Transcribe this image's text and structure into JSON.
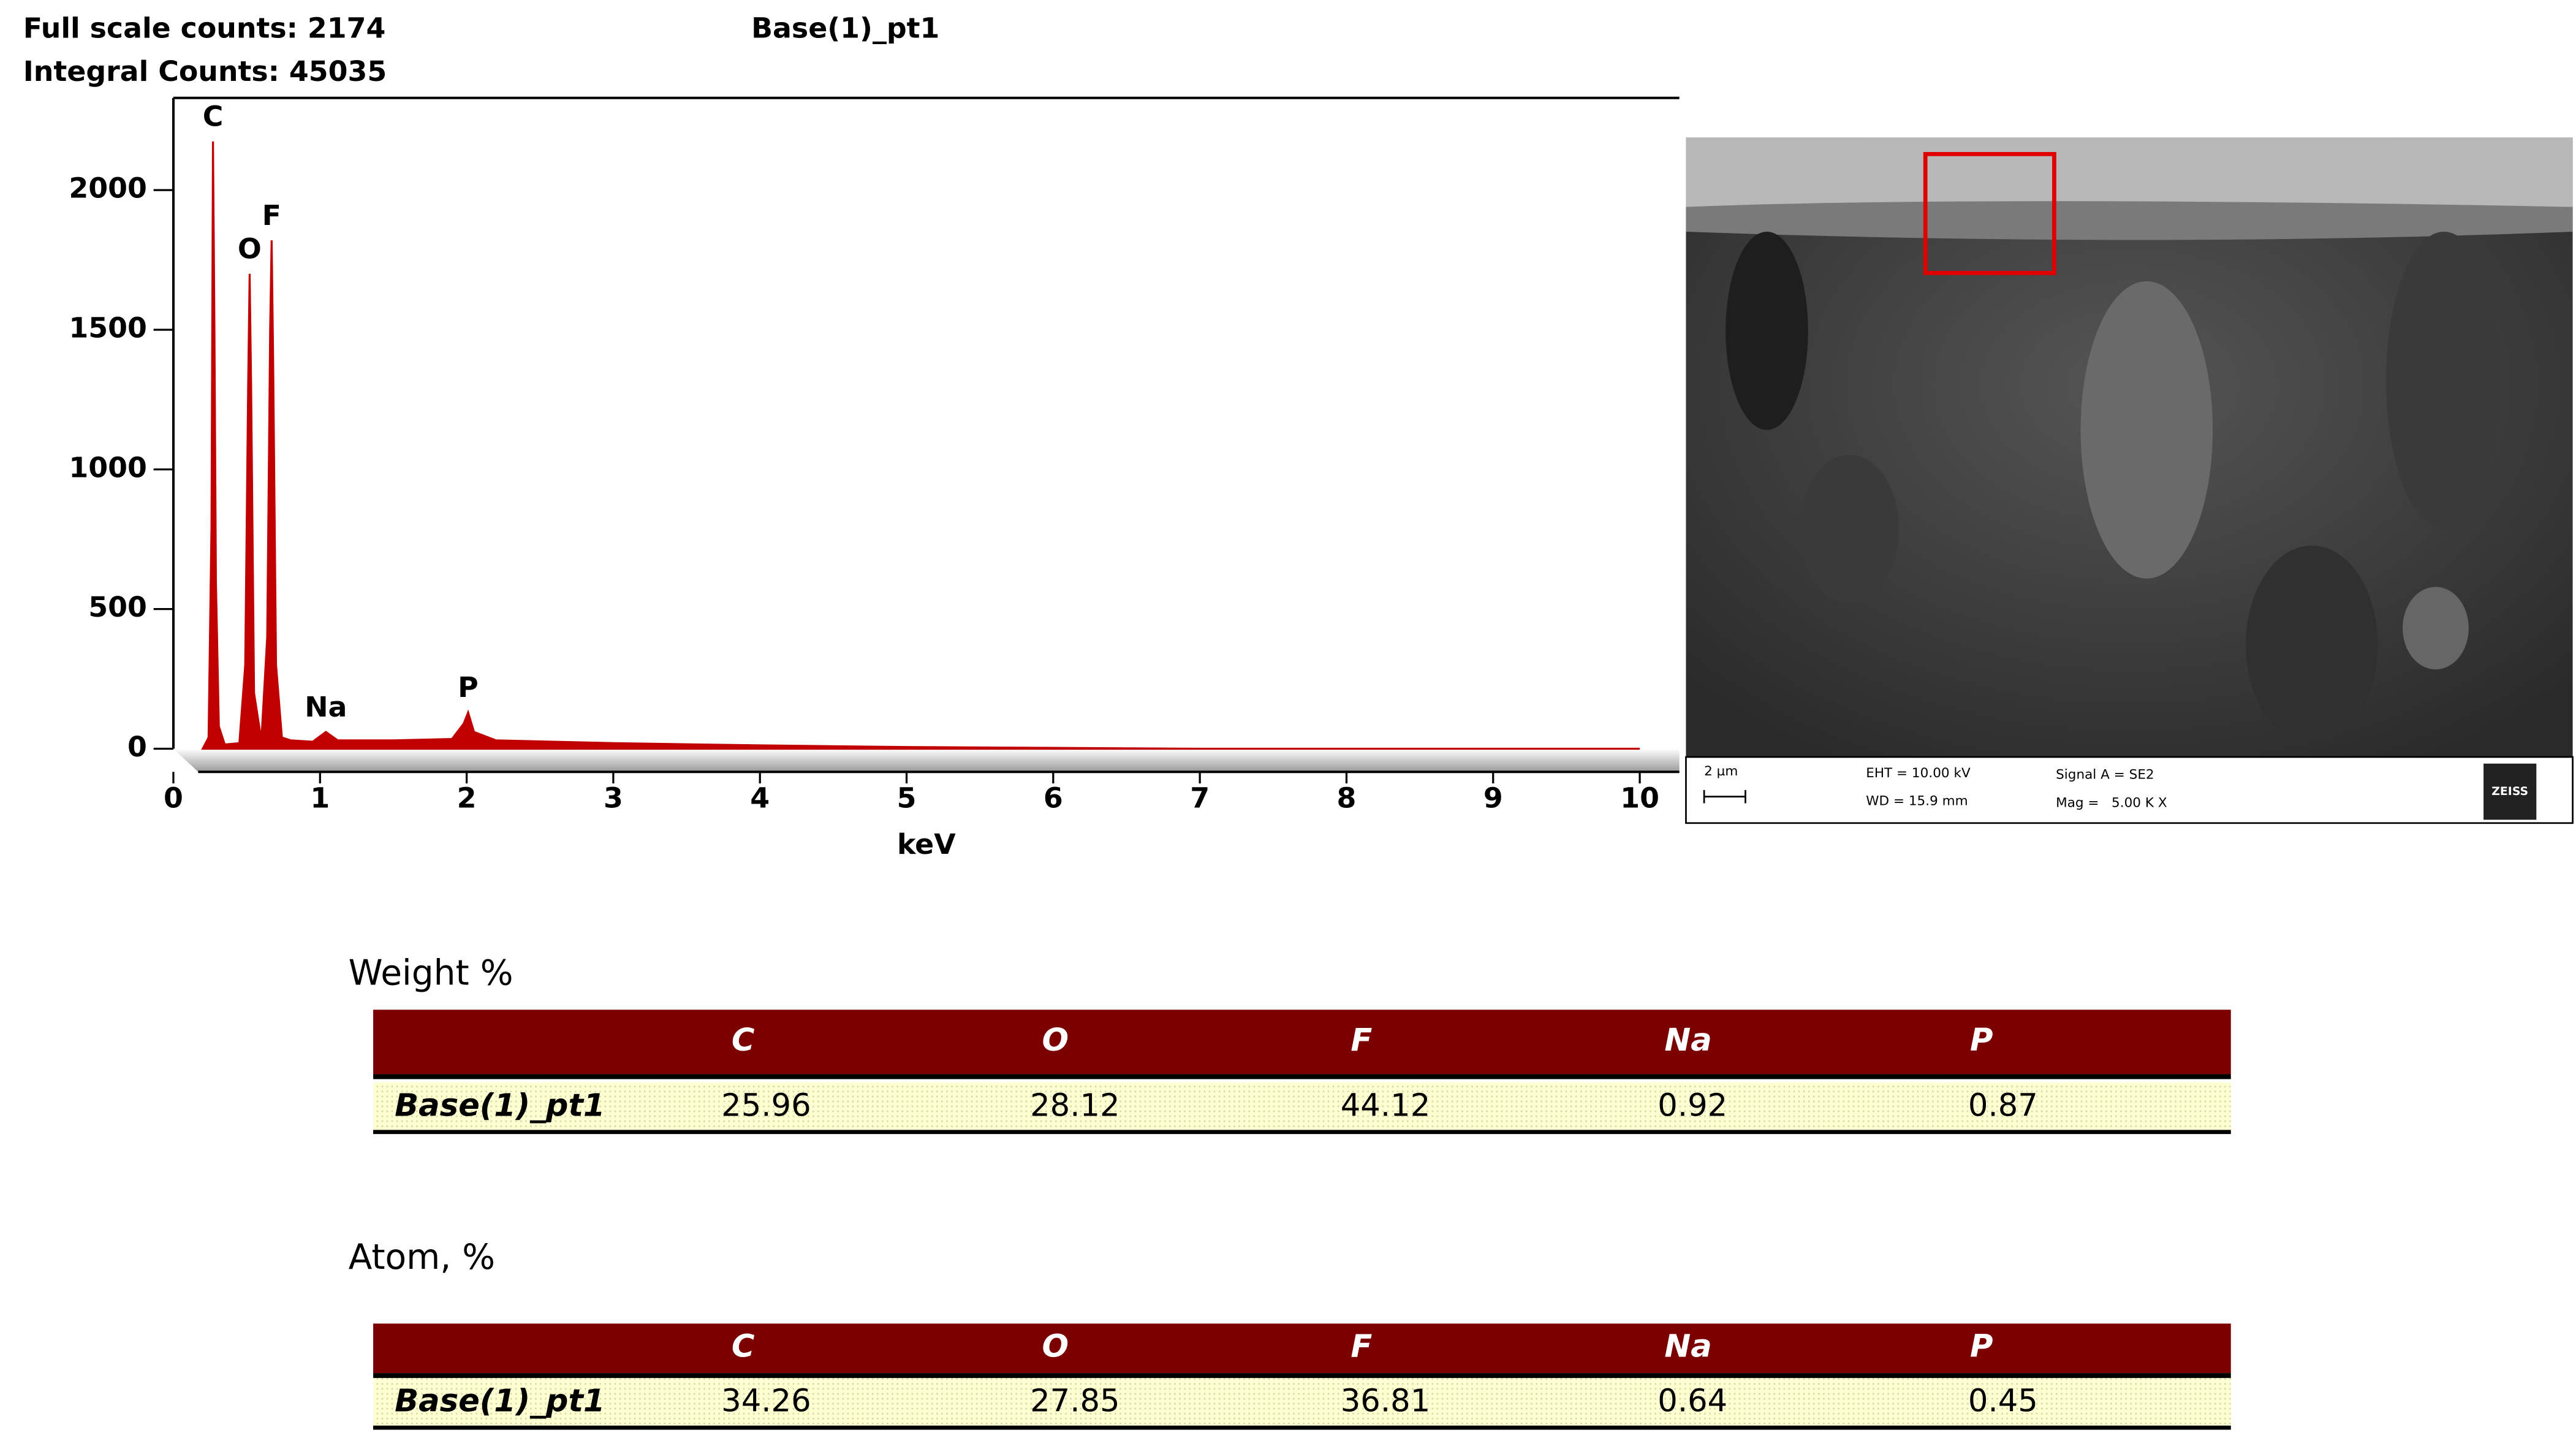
{
  "header": {
    "full_scale": "Full scale counts: 2174",
    "integral": "Integral Counts: 45035"
  },
  "chart_data": {
    "type": "line",
    "title": "Base(1)_pt1",
    "x_label": "keV",
    "color": "#c00000",
    "x": [
      0.2,
      0.24,
      0.26,
      0.27,
      0.28,
      0.29,
      0.31,
      0.35,
      0.45,
      0.49,
      0.51,
      0.52,
      0.53,
      0.55,
      0.6,
      0.64,
      0.66,
      0.67,
      0.68,
      0.7,
      0.74,
      0.8,
      0.95,
      1.04,
      1.12,
      1.5,
      1.9,
      1.98,
      2.01,
      2.05,
      2.2,
      3,
      4,
      5,
      6,
      7,
      10
    ],
    "values": [
      0,
      40,
      800,
      2174,
      1500,
      600,
      80,
      15,
      20,
      300,
      1300,
      1700,
      1300,
      200,
      30,
      400,
      1500,
      1820,
      1400,
      300,
      40,
      30,
      25,
      60,
      30,
      30,
      35,
      90,
      130,
      60,
      30,
      20,
      12,
      6,
      3,
      0,
      0
    ],
    "xlim": [
      0,
      10.27
    ],
    "ylim": [
      0,
      2330
    ],
    "xticks": [
      0,
      1,
      2,
      3,
      4,
      5,
      6,
      7,
      8,
      9,
      10
    ],
    "yticks": [
      0,
      500,
      1000,
      1500,
      2000
    ],
    "annotations": [
      {
        "text": "C",
        "x": 0.27,
        "y": 2174
      },
      {
        "text": "O",
        "x": 0.52,
        "y": 1700
      },
      {
        "text": "F",
        "x": 0.67,
        "y": 1820
      },
      {
        "text": "Na",
        "x": 1.04,
        "y": 60
      },
      {
        "text": "P",
        "x": 2.01,
        "y": 130
      }
    ]
  },
  "sem_image": {
    "scale": "2 µm",
    "eht": "EHT = 10.00 kV",
    "wd": "WD = 15.9 mm",
    "signal": "Signal A = SE2",
    "mag": "Mag =   5.00 K X",
    "brand": "ZEISS"
  },
  "tables": [
    {
      "title": "Weight %",
      "columns": [
        "C",
        "O",
        "F",
        "Na",
        "P"
      ],
      "rows": [
        [
          "Base(1)_pt1",
          25.96,
          28.12,
          44.12,
          0.92,
          0.87
        ]
      ]
    },
    {
      "title": "Atom, %",
      "columns": [
        "C",
        "O",
        "F",
        "Na",
        "P"
      ],
      "rows": [
        [
          "Base(1)_pt1",
          34.26,
          27.85,
          36.81,
          0.64,
          0.45
        ]
      ]
    }
  ]
}
